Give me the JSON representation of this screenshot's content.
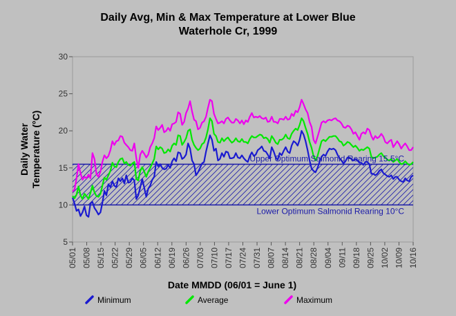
{
  "chart_data": {
    "type": "line",
    "title": "Daily Avg, Min & Max Temperature at Lower Blue",
    "subtitle": "Waterhole Cr, 1999",
    "ylabel_line1": "Daily Water",
    "ylabel_line2": "Temperature (°C)",
    "xlabel": "Date MMDD (06/01 = June 1)",
    "ylim": [
      5,
      30
    ],
    "yticks": [
      5,
      10,
      15,
      20,
      25,
      30
    ],
    "grid": false,
    "legend_position": "bottom",
    "xticks": [
      "05/01",
      "05/08",
      "05/15",
      "05/22",
      "05/29",
      "06/05",
      "06/12",
      "06/19",
      "06/26",
      "07/03",
      "07/10",
      "07/17",
      "07/24",
      "07/31",
      "08/07",
      "08/14",
      "08/21",
      "08/28",
      "09/04",
      "09/11",
      "09/18",
      "09/25",
      "10/02",
      "10/09",
      "10/16"
    ],
    "optimum_band": {
      "lower": 10,
      "upper": 15.5,
      "lower_label": "Lower Optimum Salmonid Rearing 10°C",
      "upper_label": "Upper Optimum Salmonid Rearing 15.5°C",
      "color": "#1a1aa8"
    },
    "series": [
      {
        "name": "Minimum",
        "color": "#1a1ad0",
        "values": [
          11.0,
          10.2,
          9.2,
          9.4,
          8.5,
          9.0,
          9.8,
          8.6,
          8.4,
          10.2,
          10.4,
          9.6,
          9.2,
          8.7,
          9.0,
          10.3,
          11.9,
          11.3,
          12.8,
          12.4,
          13.2,
          12.6,
          12.4,
          13.6,
          13.2,
          13.6,
          12.9,
          14.0,
          13.0,
          13.1,
          13.6,
          13.3,
          10.8,
          11.3,
          12.4,
          13.5,
          12.3,
          11.1,
          12.2,
          12.6,
          13.4,
          13.8,
          15.8,
          15.2,
          15.5,
          15.0,
          14.8,
          14.9,
          15.4,
          15.0,
          15.9,
          16.3,
          15.9,
          17.1,
          17.0,
          16.2,
          16.4,
          16.8,
          18.3,
          17.6,
          16.0,
          15.5,
          14.0,
          14.4,
          15.0,
          15.6,
          15.8,
          17.2,
          18.3,
          19.4,
          18.8,
          17.3,
          17.6,
          16.0,
          16.2,
          17.0,
          16.5,
          17.2,
          17.1,
          16.3,
          16.3,
          16.4,
          17.0,
          16.4,
          16.3,
          16.7,
          16.3,
          16.0,
          15.8,
          16.6,
          17.1,
          16.6,
          16.8,
          17.4,
          17.6,
          17.9,
          17.3,
          17.2,
          16.8,
          16.3,
          17.8,
          17.2,
          16.4,
          16.1,
          17.0,
          16.7,
          17.3,
          17.8,
          17.2,
          17.0,
          18.0,
          18.6,
          18.4,
          18.0,
          18.8,
          20.0,
          19.5,
          18.6,
          17.4,
          16.0,
          14.9,
          14.6,
          14.4,
          15.0,
          15.8,
          16.5,
          16.8,
          16.6,
          17.2,
          17.6,
          17.5,
          17.6,
          17.4,
          16.8,
          16.3,
          16.0,
          15.6,
          15.9,
          16.4,
          16.4,
          16.2,
          16.0,
          16.2,
          16.0,
          15.7,
          15.7,
          15.4,
          15.8,
          15.8,
          15.5,
          14.2,
          14.2,
          14.0,
          14.2,
          14.6,
          14.8,
          14.3,
          14.1,
          13.9,
          13.8,
          14.0,
          13.5,
          13.8,
          13.8,
          13.4,
          13.2,
          13.1,
          13.6,
          13.3,
          13.2,
          13.8,
          14.0
        ]
      },
      {
        "name": "Average",
        "color": "#00e800",
        "values": [
          11.2,
          10.9,
          11.4,
          12.5,
          11.3,
          10.8,
          11.5,
          11.2,
          10.8,
          11.6,
          12.6,
          11.7,
          11.2,
          11.1,
          11.5,
          12.6,
          13.7,
          13.4,
          14.0,
          14.6,
          15.7,
          15.2,
          15.1,
          15.8,
          16.2,
          16.3,
          15.6,
          15.8,
          15.4,
          15.3,
          15.6,
          15.8,
          13.5,
          13.3,
          14.6,
          15.1,
          14.5,
          13.8,
          14.5,
          15.0,
          15.6,
          16.2,
          17.9,
          17.5,
          17.8,
          17.6,
          17.0,
          17.1,
          17.5,
          17.2,
          18.0,
          18.3,
          18.1,
          19.4,
          19.3,
          18.1,
          18.5,
          19.0,
          20.0,
          20.2,
          18.8,
          18.1,
          17.7,
          17.4,
          17.6,
          18.2,
          18.4,
          19.1,
          20.2,
          21.7,
          21.3,
          19.6,
          19.3,
          18.5,
          18.4,
          19.0,
          18.6,
          18.9,
          19.1,
          18.7,
          18.4,
          18.6,
          19.0,
          18.6,
          18.5,
          18.9,
          18.5,
          18.5,
          18.3,
          18.9,
          19.3,
          19.1,
          19.1,
          19.3,
          19.5,
          19.4,
          19.0,
          19.1,
          18.9,
          18.4,
          19.3,
          18.9,
          18.4,
          18.2,
          18.8,
          18.8,
          19.0,
          19.5,
          19.0,
          18.9,
          19.6,
          20.0,
          20.3,
          20.1,
          20.8,
          21.7,
          21.3,
          20.4,
          19.6,
          18.5,
          17.7,
          16.6,
          16.0,
          16.6,
          17.6,
          18.6,
          18.8,
          18.6,
          18.9,
          19.2,
          19.2,
          19.3,
          19.3,
          19.0,
          18.6,
          18.5,
          18.0,
          18.2,
          18.5,
          18.4,
          18.1,
          17.8,
          18.0,
          17.7,
          17.3,
          17.5,
          17.4,
          17.6,
          17.8,
          17.6,
          16.5,
          16.3,
          16.4,
          16.5,
          16.8,
          17.0,
          16.6,
          16.4,
          16.1,
          16.0,
          16.2,
          15.8,
          16.0,
          16.2,
          15.8,
          15.5,
          15.6,
          15.9,
          15.6,
          15.4,
          15.5,
          15.8
        ]
      },
      {
        "name": "Maximum",
        "color": "#ee00ee",
        "values": [
          11.8,
          12.1,
          13.6,
          15.5,
          14.3,
          13.4,
          13.8,
          13.6,
          14.1,
          13.6,
          17.0,
          16.2,
          14.2,
          13.8,
          14.5,
          15.8,
          16.7,
          16.3,
          16.6,
          17.4,
          18.6,
          18.1,
          18.6,
          18.7,
          19.3,
          19.2,
          18.4,
          18.1,
          17.8,
          17.4,
          17.3,
          18.3,
          16.3,
          15.0,
          16.8,
          17.3,
          16.9,
          16.4,
          16.8,
          17.8,
          18.3,
          19.0,
          20.6,
          20.1,
          20.4,
          20.8,
          19.8,
          20.0,
          20.4,
          20.0,
          20.9,
          21.0,
          21.2,
          22.5,
          22.3,
          20.8,
          21.2,
          22.4,
          23.0,
          24.0,
          22.6,
          21.5,
          21.3,
          20.2,
          20.4,
          21.1,
          21.3,
          21.9,
          23.1,
          24.2,
          24.0,
          22.3,
          21.6,
          21.0,
          21.1,
          21.3,
          21.0,
          21.6,
          21.8,
          21.4,
          21.1,
          21.1,
          21.6,
          21.4,
          21.0,
          21.4,
          20.9,
          21.4,
          21.2,
          21.9,
          22.4,
          21.8,
          21.9,
          21.8,
          22.0,
          21.7,
          21.6,
          21.8,
          21.2,
          21.3,
          21.9,
          21.2,
          21.2,
          21.0,
          21.6,
          21.6,
          21.5,
          21.9,
          21.5,
          21.6,
          22.3,
          22.0,
          22.7,
          22.5,
          23.2,
          24.2,
          23.6,
          22.9,
          22.4,
          21.2,
          20.5,
          18.8,
          18.3,
          19.2,
          20.1,
          21.1,
          21.3,
          21.1,
          21.4,
          21.5,
          21.4,
          21.6,
          21.7,
          21.4,
          21.3,
          21.0,
          20.5,
          20.4,
          20.7,
          20.6,
          20.2,
          19.6,
          19.8,
          19.3,
          18.8,
          19.6,
          19.8,
          19.6,
          20.3,
          20.1,
          19.3,
          18.8,
          19.3,
          19.0,
          19.2,
          19.6,
          19.2,
          18.5,
          18.3,
          18.6,
          18.8,
          17.8,
          18.2,
          18.6,
          18.2,
          17.6,
          18.0,
          18.3,
          17.9,
          17.4,
          17.4,
          17.8
        ]
      }
    ]
  }
}
